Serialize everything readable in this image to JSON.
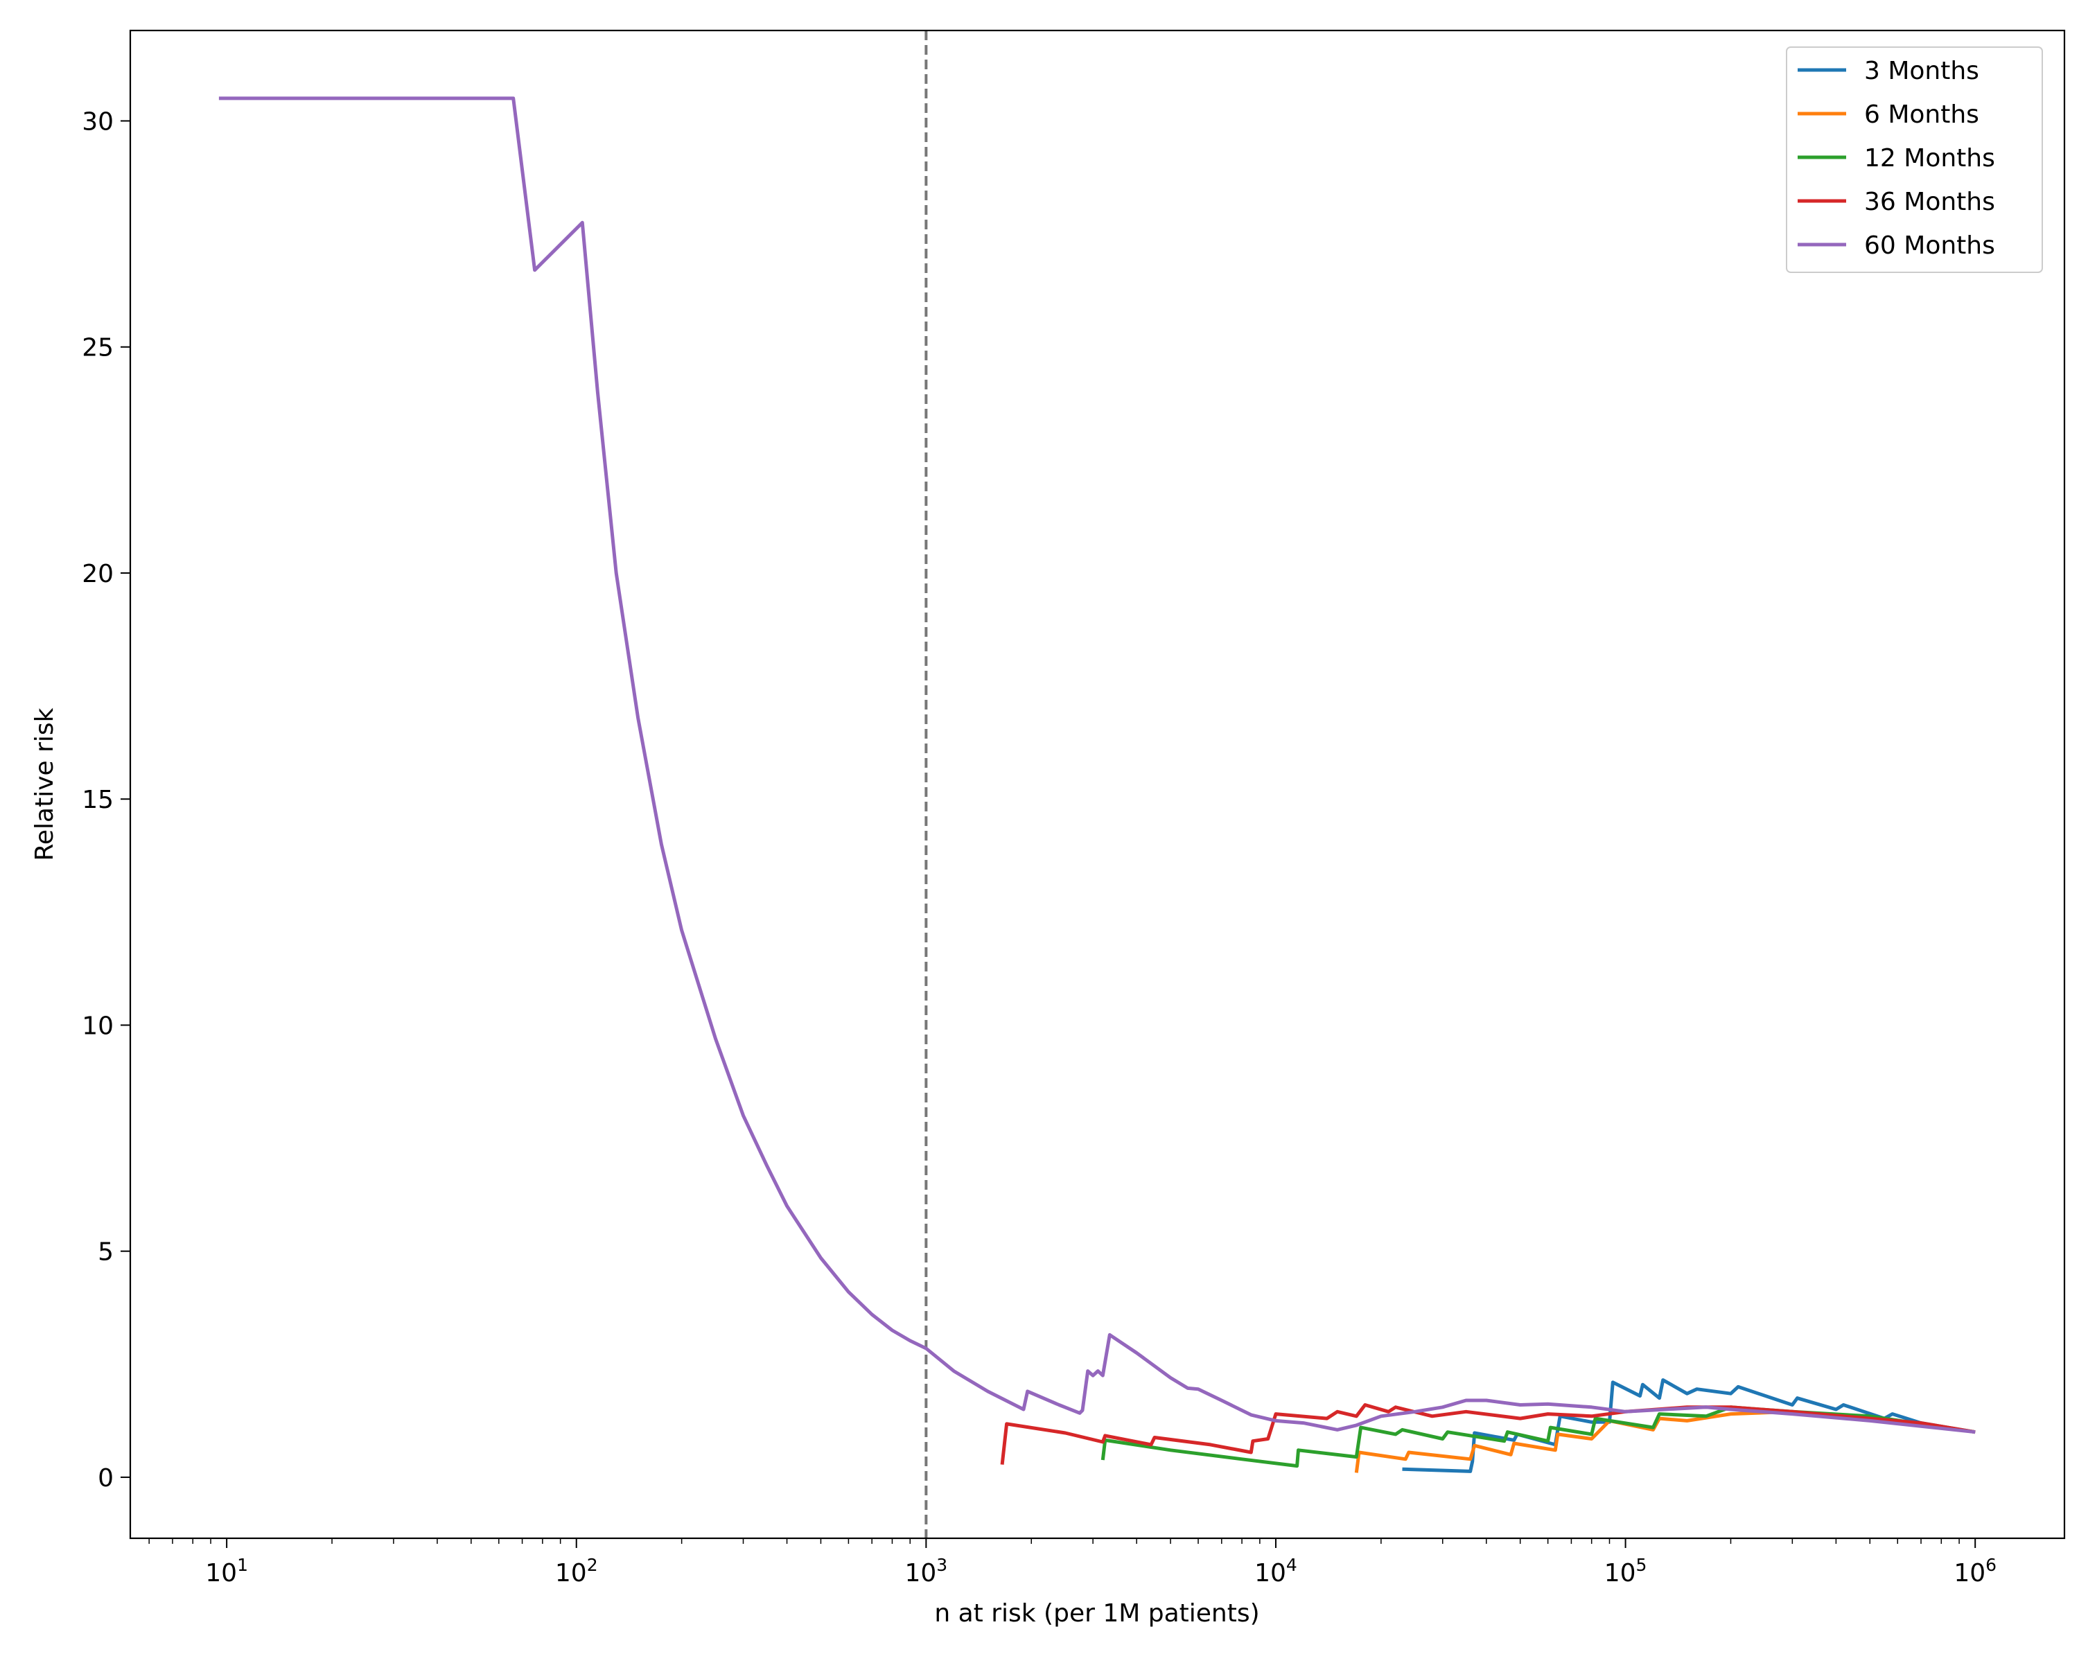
{
  "chart_data": {
    "type": "line",
    "xlabel": "n at risk (per 1M patients)",
    "ylabel": "Relative risk",
    "xscale": "log",
    "xlim": [
      5.3,
      1800000
    ],
    "ylim": [
      -1.35,
      32
    ],
    "x_ticks": [
      {
        "value": 10,
        "base": "10",
        "exp": "1"
      },
      {
        "value": 100,
        "base": "10",
        "exp": "2"
      },
      {
        "value": 1000,
        "base": "10",
        "exp": "3"
      },
      {
        "value": 10000,
        "base": "10",
        "exp": "4"
      },
      {
        "value": 100000,
        "base": "10",
        "exp": "5"
      },
      {
        "value": 1000000,
        "base": "10",
        "exp": "6"
      }
    ],
    "y_ticks": [
      0,
      5,
      10,
      15,
      20,
      25,
      30
    ],
    "reference_line": {
      "x": 1000,
      "style": "dashed",
      "color": "#777777"
    },
    "grid": false,
    "legend": "top-right",
    "series": [
      {
        "name": "3 Months",
        "color": "#1f77b4",
        "points": [
          [
            23000,
            0.18
          ],
          [
            36000,
            0.13
          ],
          [
            36500,
            0.35
          ],
          [
            37000,
            0.98
          ],
          [
            48000,
            0.82
          ],
          [
            49000,
            0.95
          ],
          [
            63000,
            0.72
          ],
          [
            64000,
            1.05
          ],
          [
            65000,
            1.35
          ],
          [
            80000,
            1.22
          ],
          [
            90000,
            1.22
          ],
          [
            92000,
            2.1
          ],
          [
            110000,
            1.8
          ],
          [
            112000,
            2.05
          ],
          [
            125000,
            1.75
          ],
          [
            128000,
            2.15
          ],
          [
            150000,
            1.85
          ],
          [
            160000,
            1.95
          ],
          [
            200000,
            1.85
          ],
          [
            210000,
            2.0
          ],
          [
            300000,
            1.6
          ],
          [
            310000,
            1.75
          ],
          [
            400000,
            1.5
          ],
          [
            420000,
            1.6
          ],
          [
            550000,
            1.3
          ],
          [
            580000,
            1.4
          ],
          [
            700000,
            1.2
          ],
          [
            1000000,
            1.0
          ]
        ]
      },
      {
        "name": "6 Months",
        "color": "#ff7f0e",
        "points": [
          [
            17000,
            0.1
          ],
          [
            17300,
            0.55
          ],
          [
            23500,
            0.4
          ],
          [
            24000,
            0.55
          ],
          [
            36000,
            0.4
          ],
          [
            37000,
            0.7
          ],
          [
            47000,
            0.5
          ],
          [
            48000,
            0.75
          ],
          [
            63000,
            0.6
          ],
          [
            64000,
            0.95
          ],
          [
            80000,
            0.85
          ],
          [
            90000,
            1.25
          ],
          [
            120000,
            1.05
          ],
          [
            125000,
            1.3
          ],
          [
            150000,
            1.25
          ],
          [
            200000,
            1.4
          ],
          [
            300000,
            1.45
          ],
          [
            400000,
            1.35
          ],
          [
            600000,
            1.25
          ],
          [
            1000000,
            1.0
          ]
        ]
      },
      {
        "name": "12 Months",
        "color": "#2ca02c",
        "points": [
          [
            3200,
            0.38
          ],
          [
            3250,
            0.82
          ],
          [
            5000,
            0.6
          ],
          [
            8000,
            0.4
          ],
          [
            11500,
            0.25
          ],
          [
            11600,
            0.6
          ],
          [
            17000,
            0.45
          ],
          [
            17500,
            1.1
          ],
          [
            22000,
            0.95
          ],
          [
            23000,
            1.05
          ],
          [
            30000,
            0.85
          ],
          [
            31000,
            1.0
          ],
          [
            45000,
            0.8
          ],
          [
            46000,
            1.0
          ],
          [
            60000,
            0.8
          ],
          [
            61000,
            1.1
          ],
          [
            80000,
            0.95
          ],
          [
            82000,
            1.3
          ],
          [
            120000,
            1.1
          ],
          [
            125000,
            1.4
          ],
          [
            170000,
            1.35
          ],
          [
            200000,
            1.55
          ],
          [
            300000,
            1.45
          ],
          [
            500000,
            1.35
          ],
          [
            1000000,
            1.0
          ]
        ]
      },
      {
        "name": "36 Months",
        "color": "#d62728",
        "points": [
          [
            1650,
            0.28
          ],
          [
            1700,
            1.18
          ],
          [
            2500,
            0.98
          ],
          [
            3200,
            0.78
          ],
          [
            3250,
            0.92
          ],
          [
            4400,
            0.72
          ],
          [
            4500,
            0.88
          ],
          [
            6500,
            0.72
          ],
          [
            8500,
            0.55
          ],
          [
            8600,
            0.8
          ],
          [
            9500,
            0.85
          ],
          [
            10000,
            1.4
          ],
          [
            14000,
            1.3
          ],
          [
            15000,
            1.45
          ],
          [
            17000,
            1.35
          ],
          [
            18000,
            1.6
          ],
          [
            21000,
            1.45
          ],
          [
            22000,
            1.55
          ],
          [
            28000,
            1.35
          ],
          [
            35000,
            1.45
          ],
          [
            50000,
            1.3
          ],
          [
            60000,
            1.4
          ],
          [
            80000,
            1.35
          ],
          [
            100000,
            1.45
          ],
          [
            150000,
            1.55
          ],
          [
            200000,
            1.55
          ],
          [
            300000,
            1.45
          ],
          [
            500000,
            1.3
          ],
          [
            700000,
            1.2
          ],
          [
            1000000,
            1.0
          ]
        ]
      },
      {
        "name": "60 Months",
        "color": "#9467bd",
        "points": [
          [
            9.5,
            30.5
          ],
          [
            66,
            30.5
          ],
          [
            76,
            26.7
          ],
          [
            104,
            27.75
          ],
          [
            115,
            24
          ],
          [
            130,
            20
          ],
          [
            150,
            16.8
          ],
          [
            175,
            14
          ],
          [
            200,
            12.1
          ],
          [
            250,
            9.7
          ],
          [
            300,
            8
          ],
          [
            350,
            6.9
          ],
          [
            400,
            6
          ],
          [
            500,
            4.85
          ],
          [
            600,
            4.1
          ],
          [
            700,
            3.6
          ],
          [
            800,
            3.25
          ],
          [
            900,
            3.02
          ],
          [
            1000,
            2.85
          ],
          [
            1200,
            2.35
          ],
          [
            1500,
            1.9
          ],
          [
            1900,
            1.5
          ],
          [
            1950,
            1.9
          ],
          [
            2400,
            1.6
          ],
          [
            2750,
            1.42
          ],
          [
            2800,
            1.48
          ],
          [
            2900,
            2.35
          ],
          [
            3000,
            2.25
          ],
          [
            3100,
            2.35
          ],
          [
            3200,
            2.25
          ],
          [
            3350,
            3.15
          ],
          [
            4000,
            2.75
          ],
          [
            5000,
            2.2
          ],
          [
            5600,
            1.97
          ],
          [
            6000,
            1.95
          ],
          [
            7000,
            1.7
          ],
          [
            8500,
            1.38
          ],
          [
            10000,
            1.25
          ],
          [
            12000,
            1.2
          ],
          [
            15000,
            1.05
          ],
          [
            17000,
            1.15
          ],
          [
            20000,
            1.35
          ],
          [
            25000,
            1.45
          ],
          [
            30000,
            1.55
          ],
          [
            35000,
            1.7
          ],
          [
            40000,
            1.7
          ],
          [
            50000,
            1.6
          ],
          [
            60000,
            1.62
          ],
          [
            80000,
            1.55
          ],
          [
            100000,
            1.45
          ],
          [
            130000,
            1.5
          ],
          [
            170000,
            1.55
          ],
          [
            200000,
            1.5
          ],
          [
            300000,
            1.4
          ],
          [
            500000,
            1.25
          ],
          [
            1000000,
            1.0
          ]
        ]
      }
    ]
  }
}
